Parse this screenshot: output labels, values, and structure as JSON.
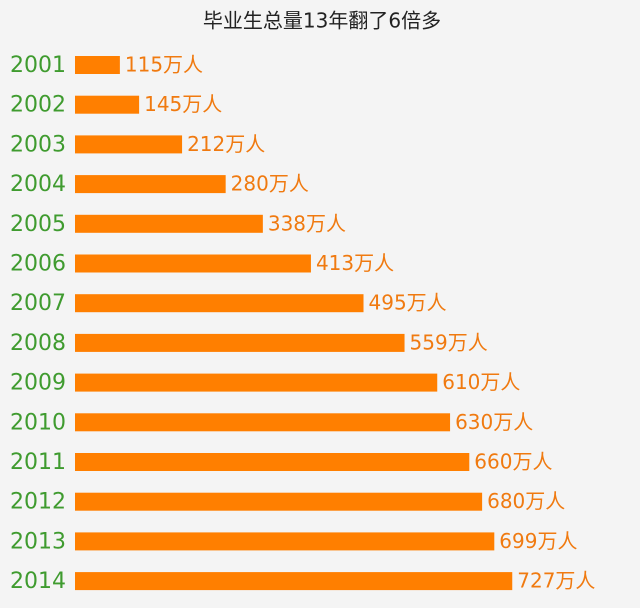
{
  "chart_data": {
    "type": "bar",
    "orientation": "horizontal",
    "title": "毕业生总量13年翻了6倍多",
    "categories": [
      "2001",
      "2002",
      "2003",
      "2004",
      "2005",
      "2006",
      "2007",
      "2008",
      "2009",
      "2010",
      "2011",
      "2012",
      "2013",
      "2014"
    ],
    "values": [
      115,
      145,
      212,
      280,
      338,
      413,
      495,
      559,
      610,
      630,
      660,
      680,
      699,
      727
    ],
    "value_labels": [
      "115万人",
      "145万人",
      "212万人",
      "280万人",
      "338万人",
      "413万人",
      "495万人",
      "559万人",
      "610万人",
      "630万人",
      "660万人",
      "680万人",
      "699万人",
      "727万人"
    ],
    "color": "#ff7f00",
    "category_color": "#3f9b2f",
    "label_color": "#f07a10",
    "xlim": [
      45,
      750
    ]
  }
}
